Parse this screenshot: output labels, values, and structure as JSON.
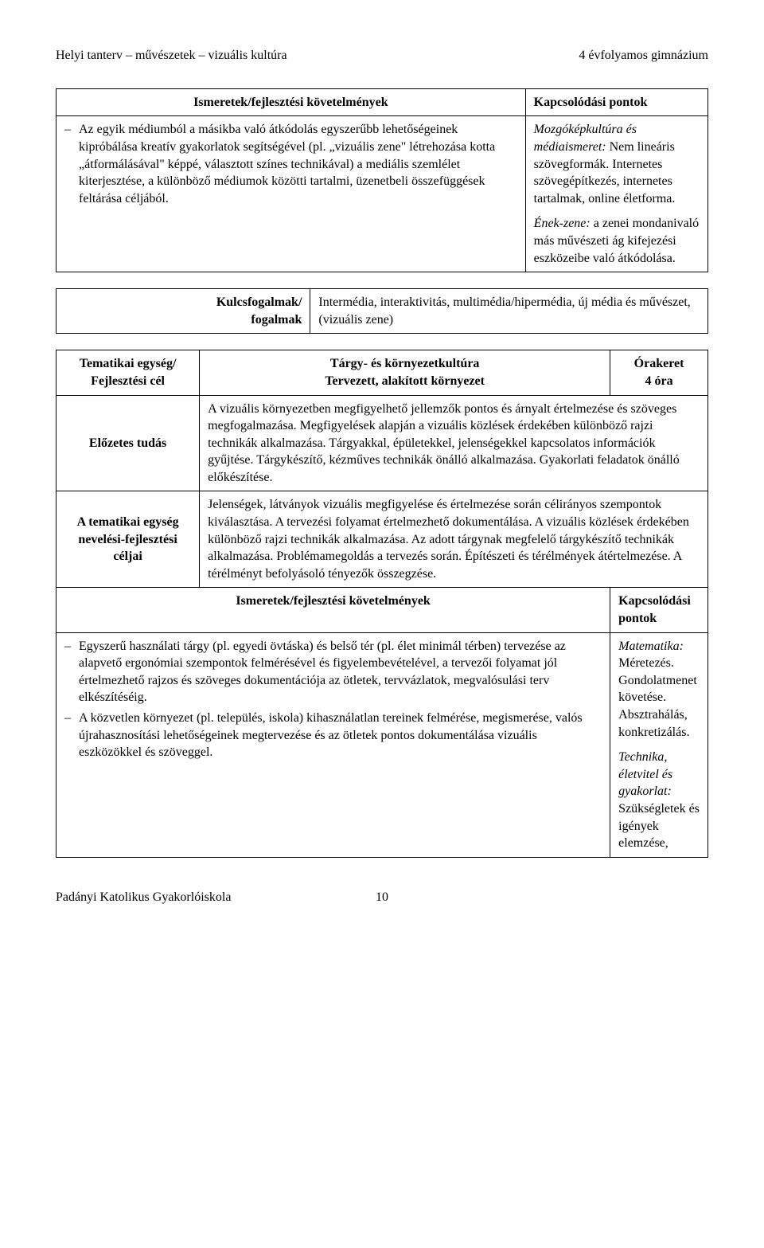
{
  "header": {
    "left": "Helyi tanterv – művészetek – vizuális kultúra",
    "right": "4 évfolyamos gimnázium"
  },
  "table1": {
    "header_left": "Ismeretek/fejlesztési követelmények",
    "header_right": "Kapcsolódási pontok",
    "bullet_text": "Az egyik médiumból a másikba való átkódolás egyszerűbb lehetőségeinek kipróbálása kreatív gyakorlatok segítségével (pl. „vizuális zene\" létrehozása kotta „átformálásával\" képpé, választott színes technikával) a mediális szemlélet kiterjesztése, a különböző médiumok közötti tartalmi, üzenetbeli összefüggések feltárása céljából.",
    "right_p1_italic": "Mozgóképkultúra és médiaismeret:",
    "right_p1_rest": " Nem lineáris szövegformák. Internetes szövegépítkezés, internetes tartalmak, online életforma.",
    "right_p2_italic": "Ének-zene:",
    "right_p2_rest": " a zenei mondanivaló más művészeti ág kifejezési eszközeibe való átkódolása."
  },
  "table2": {
    "label_top": "Kulcsfogalmak/",
    "label_bot": "fogalmak",
    "content": "Intermédia, interaktivitás, multimédia/hipermédia, új média és művészet, (vizuális zene)"
  },
  "table3": {
    "r1c1_top": "Tematikai egység/",
    "r1c1_bot": "Fejlesztési cél",
    "r1c2_top": "Tárgy- és környezetkultúra",
    "r1c2_bot": "Tervezett, alakított környezet",
    "r1c3_top": "Órakeret",
    "r1c3_bot": "4 óra",
    "r2c1": "Előzetes tudás",
    "r2c2": "A vizuális környezetben megfigyelhető jellemzők pontos és árnyalt értelmezése és szöveges megfogalmazása. Megfigyelések alapján a vizuális közlések érdekében különböző rajzi technikák alkalmazása. Tárgyakkal, épületekkel, jelenségekkel kapcsolatos információk gyűjtése. Tárgykészítő, kézműves technikák önálló alkalmazása. Gyakorlati feladatok önálló előkészítése.",
    "r3c1": "A tematikai egység nevelési-fejlesztési céljai",
    "r3c2": "Jelenségek, látványok vizuális megfigyelése és értelmezése során célirányos szempontok kiválasztása. A tervezési folyamat értelmezhető dokumentálása. A vizuális közlések érdekében különböző rajzi technikák alkalmazása. Az adott tárgynak megfelelő tárgykészítő technikák alkalmazása. Problémamegoldás a tervezés során. Építészeti és térélmények átértelmezése. A térélményt befolyásoló tényezők összegzése.",
    "r4c1": "Ismeretek/fejlesztési követelmények",
    "r4c2": "Kapcsolódási pontok",
    "r5_bullet1": "Egyszerű használati tárgy (pl. egyedi övtáska) és belső tér (pl. élet minimál térben) tervezése az alapvető ergonómiai szempontok felmérésével és figyelembevételével, a tervezői folyamat jól értelmezhető rajzos és szöveges dokumentációja az ötletek, tervvázlatok, megvalósulási terv elkészítéséig.",
    "r5_bullet2": "A közvetlen környezet (pl. település, iskola) kihasználatlan tereinek felmérése, megismerése, valós újrahasznosítási lehetőségeinek megtervezése és az ötletek pontos dokumentálása vizuális eszközökkel és szöveggel.",
    "r5_right_p1_italic": "Matematika:",
    "r5_right_p1_rest": " Méretezés. Gondolatmenet követése. Absztrahálás, konkretizálás.",
    "r5_right_p2_italic": "Technika, életvitel és gyakorlat:",
    "r5_right_p2_rest": " Szükségletek és igények elemzése,"
  },
  "footer": {
    "left": "Padányi Katolikus Gyakorlóiskola",
    "page": "10"
  }
}
